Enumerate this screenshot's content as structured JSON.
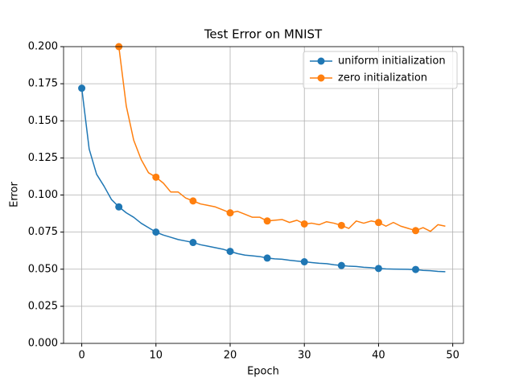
{
  "chart_data": {
    "type": "line",
    "title": "Test Error on MNIST",
    "x_label": "Epoch",
    "y_label": "Error",
    "x": [
      0,
      1,
      2,
      3,
      4,
      5,
      6,
      7,
      8,
      9,
      10,
      11,
      12,
      13,
      14,
      15,
      16,
      17,
      18,
      19,
      20,
      21,
      22,
      23,
      24,
      25,
      26,
      27,
      28,
      29,
      30,
      31,
      32,
      33,
      34,
      35,
      36,
      37,
      38,
      39,
      40,
      41,
      42,
      43,
      44,
      45,
      46,
      47,
      48,
      49
    ],
    "series": [
      {
        "name": "uniform initialization",
        "color": "#1f77b4",
        "values": [
          0.172,
          0.131,
          0.114,
          0.106,
          0.097,
          0.092,
          0.088,
          0.085,
          0.081,
          0.078,
          0.075,
          0.073,
          0.0715,
          0.07,
          0.069,
          0.068,
          0.0665,
          0.0655,
          0.0645,
          0.0635,
          0.062,
          0.0605,
          0.0595,
          0.059,
          0.0585,
          0.0575,
          0.057,
          0.0567,
          0.056,
          0.0555,
          0.055,
          0.0545,
          0.054,
          0.0537,
          0.053,
          0.0525,
          0.052,
          0.0518,
          0.0513,
          0.051,
          0.0505,
          0.0502,
          0.0501,
          0.05,
          0.0499,
          0.0498,
          0.0492,
          0.049,
          0.0485,
          0.0483
        ]
      },
      {
        "name": "zero initialization",
        "color": "#ff7f0e",
        "values": [
          null,
          null,
          null,
          null,
          null,
          0.2,
          0.16,
          0.137,
          0.124,
          0.115,
          0.112,
          0.108,
          0.102,
          0.102,
          0.098,
          0.096,
          0.094,
          0.093,
          0.092,
          0.09,
          0.088,
          0.089,
          0.087,
          0.085,
          0.085,
          0.0825,
          0.083,
          0.0835,
          0.0815,
          0.083,
          0.0805,
          0.081,
          0.08,
          0.082,
          0.081,
          0.0795,
          0.0775,
          0.0825,
          0.081,
          0.0825,
          0.0815,
          0.079,
          0.0815,
          0.079,
          0.0775,
          0.076,
          0.078,
          0.0755,
          0.08,
          0.079
        ]
      }
    ],
    "markevery": 5,
    "xlim": [
      -2.45,
      51.45
    ],
    "xticks": [
      0,
      10,
      20,
      30,
      40,
      50
    ],
    "ylim": [
      0,
      0.2
    ],
    "yticks": [
      {
        "value": 0,
        "label": "0.000"
      },
      {
        "value": 0.025,
        "label": "0.025"
      },
      {
        "value": 0.05,
        "label": "0.050"
      },
      {
        "value": 0.075,
        "label": "0.075"
      },
      {
        "value": 0.1,
        "label": "0.100"
      },
      {
        "value": 0.125,
        "label": "0.125"
      },
      {
        "value": 0.15,
        "label": "0.150"
      },
      {
        "value": 0.175,
        "label": "0.175"
      },
      {
        "value": 0.2,
        "label": "0.200"
      }
    ],
    "grid": true,
    "legend": "upper right"
  }
}
